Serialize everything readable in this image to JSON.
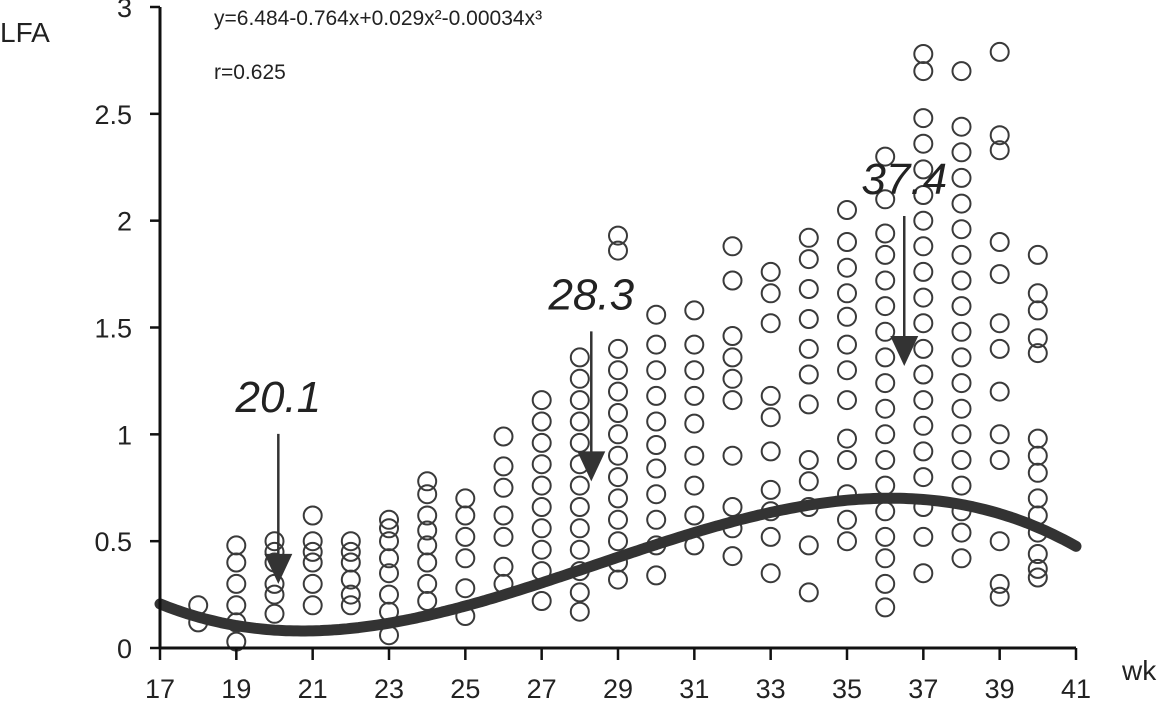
{
  "chart_data": {
    "type": "scatter",
    "xlabel": "wk",
    "ylabel": "LFA",
    "xlim": [
      17,
      41
    ],
    "ylim": [
      0,
      3
    ],
    "x_ticks": [
      "17",
      "19",
      "21",
      "23",
      "25",
      "27",
      "29",
      "31",
      "33",
      "35",
      "37",
      "39",
      "41"
    ],
    "y_ticks": [
      "0",
      "0.5",
      "1",
      "1.5",
      "2",
      "2.5",
      "3"
    ],
    "equation_text": "y=6.484-0.764x+0.029x²-0.00034x³",
    "r_text": "r=0.625",
    "grid": false,
    "fit": {
      "form": "cubic",
      "coefficients": [
        6.484,
        -0.764,
        0.029,
        -0.00034
      ]
    },
    "annotations": [
      {
        "label": "20.1",
        "x": 20.1,
        "y": 0.3
      },
      {
        "label": "28.3",
        "x": 28.3,
        "y": 0.78
      },
      {
        "label": "37.4",
        "x": 36.5,
        "y": 1.32
      }
    ],
    "points": [
      [
        18,
        0.2
      ],
      [
        18,
        0.12
      ],
      [
        19,
        0.48
      ],
      [
        19,
        0.4
      ],
      [
        19,
        0.3
      ],
      [
        19,
        0.2
      ],
      [
        19,
        0.12
      ],
      [
        19,
        0.03
      ],
      [
        20,
        0.5
      ],
      [
        20,
        0.45
      ],
      [
        20,
        0.4
      ],
      [
        20,
        0.3
      ],
      [
        20,
        0.25
      ],
      [
        20,
        0.16
      ],
      [
        21,
        0.62
      ],
      [
        21,
        0.5
      ],
      [
        21,
        0.45
      ],
      [
        21,
        0.4
      ],
      [
        21,
        0.3
      ],
      [
        21,
        0.2
      ],
      [
        22,
        0.5
      ],
      [
        22,
        0.45
      ],
      [
        22,
        0.4
      ],
      [
        22,
        0.32
      ],
      [
        22,
        0.25
      ],
      [
        22,
        0.2
      ],
      [
        23,
        0.6
      ],
      [
        23,
        0.56
      ],
      [
        23,
        0.5
      ],
      [
        23,
        0.42
      ],
      [
        23,
        0.35
      ],
      [
        23,
        0.25
      ],
      [
        23,
        0.17
      ],
      [
        23,
        0.06
      ],
      [
        24,
        0.78
      ],
      [
        24,
        0.72
      ],
      [
        24,
        0.62
      ],
      [
        24,
        0.55
      ],
      [
        24,
        0.48
      ],
      [
        24,
        0.4
      ],
      [
        24,
        0.3
      ],
      [
        24,
        0.22
      ],
      [
        25,
        0.7
      ],
      [
        25,
        0.62
      ],
      [
        25,
        0.52
      ],
      [
        25,
        0.42
      ],
      [
        25,
        0.28
      ],
      [
        25,
        0.15
      ],
      [
        26,
        0.99
      ],
      [
        26,
        0.85
      ],
      [
        26,
        0.75
      ],
      [
        26,
        0.62
      ],
      [
        26,
        0.52
      ],
      [
        26,
        0.38
      ],
      [
        26,
        0.3
      ],
      [
        27,
        1.16
      ],
      [
        27,
        1.06
      ],
      [
        27,
        0.96
      ],
      [
        27,
        0.86
      ],
      [
        27,
        0.76
      ],
      [
        27,
        0.66
      ],
      [
        27,
        0.56
      ],
      [
        27,
        0.46
      ],
      [
        27,
        0.36
      ],
      [
        27,
        0.22
      ],
      [
        28,
        1.36
      ],
      [
        28,
        1.26
      ],
      [
        28,
        1.16
      ],
      [
        28,
        1.06
      ],
      [
        28,
        0.96
      ],
      [
        28,
        0.86
      ],
      [
        28,
        0.76
      ],
      [
        28,
        0.66
      ],
      [
        28,
        0.56
      ],
      [
        28,
        0.46
      ],
      [
        28,
        0.36
      ],
      [
        28,
        0.26
      ],
      [
        28,
        0.17
      ],
      [
        29,
        1.93
      ],
      [
        29,
        1.86
      ],
      [
        29,
        1.4
      ],
      [
        29,
        1.3
      ],
      [
        29,
        1.2
      ],
      [
        29,
        1.1
      ],
      [
        29,
        1.0
      ],
      [
        29,
        0.9
      ],
      [
        29,
        0.8
      ],
      [
        29,
        0.7
      ],
      [
        29,
        0.6
      ],
      [
        29,
        0.5
      ],
      [
        29,
        0.4
      ],
      [
        29,
        0.32
      ],
      [
        30,
        1.56
      ],
      [
        30,
        1.42
      ],
      [
        30,
        1.3
      ],
      [
        30,
        1.18
      ],
      [
        30,
        1.06
      ],
      [
        30,
        0.95
      ],
      [
        30,
        0.84
      ],
      [
        30,
        0.72
      ],
      [
        30,
        0.6
      ],
      [
        30,
        0.48
      ],
      [
        30,
        0.34
      ],
      [
        31,
        1.58
      ],
      [
        31,
        1.42
      ],
      [
        31,
        1.3
      ],
      [
        31,
        1.18
      ],
      [
        31,
        1.05
      ],
      [
        31,
        0.9
      ],
      [
        31,
        0.76
      ],
      [
        31,
        0.62
      ],
      [
        31,
        0.48
      ],
      [
        32,
        1.88
      ],
      [
        32,
        1.72
      ],
      [
        32,
        1.46
      ],
      [
        32,
        1.36
      ],
      [
        32,
        1.26
      ],
      [
        32,
        1.16
      ],
      [
        32,
        0.9
      ],
      [
        32,
        0.66
      ],
      [
        32,
        0.56
      ],
      [
        32,
        0.43
      ],
      [
        33,
        1.76
      ],
      [
        33,
        1.66
      ],
      [
        33,
        1.52
      ],
      [
        33,
        1.18
      ],
      [
        33,
        1.08
      ],
      [
        33,
        0.92
      ],
      [
        33,
        0.74
      ],
      [
        33,
        0.64
      ],
      [
        33,
        0.52
      ],
      [
        33,
        0.35
      ],
      [
        34,
        1.92
      ],
      [
        34,
        1.82
      ],
      [
        34,
        1.68
      ],
      [
        34,
        1.54
      ],
      [
        34,
        1.4
      ],
      [
        34,
        1.28
      ],
      [
        34,
        1.14
      ],
      [
        34,
        0.88
      ],
      [
        34,
        0.78
      ],
      [
        34,
        0.66
      ],
      [
        34,
        0.48
      ],
      [
        34,
        0.26
      ],
      [
        35,
        2.05
      ],
      [
        35,
        1.9
      ],
      [
        35,
        1.78
      ],
      [
        35,
        1.66
      ],
      [
        35,
        1.55
      ],
      [
        35,
        1.42
      ],
      [
        35,
        1.3
      ],
      [
        35,
        1.16
      ],
      [
        35,
        0.98
      ],
      [
        35,
        0.88
      ],
      [
        35,
        0.72
      ],
      [
        35,
        0.6
      ],
      [
        35,
        0.5
      ],
      [
        36,
        2.3
      ],
      [
        36,
        2.1
      ],
      [
        36,
        1.94
      ],
      [
        36,
        1.84
      ],
      [
        36,
        1.72
      ],
      [
        36,
        1.6
      ],
      [
        36,
        1.48
      ],
      [
        36,
        1.36
      ],
      [
        36,
        1.24
      ],
      [
        36,
        1.12
      ],
      [
        36,
        1.0
      ],
      [
        36,
        0.88
      ],
      [
        36,
        0.76
      ],
      [
        36,
        0.64
      ],
      [
        36,
        0.52
      ],
      [
        36,
        0.42
      ],
      [
        36,
        0.3
      ],
      [
        36,
        0.19
      ],
      [
        37,
        2.78
      ],
      [
        37,
        2.7
      ],
      [
        37,
        2.48
      ],
      [
        37,
        2.36
      ],
      [
        37,
        2.24
      ],
      [
        37,
        2.12
      ],
      [
        37,
        2.0
      ],
      [
        37,
        1.88
      ],
      [
        37,
        1.76
      ],
      [
        37,
        1.64
      ],
      [
        37,
        1.52
      ],
      [
        37,
        1.4
      ],
      [
        37,
        1.28
      ],
      [
        37,
        1.16
      ],
      [
        37,
        1.04
      ],
      [
        37,
        0.92
      ],
      [
        37,
        0.8
      ],
      [
        37,
        0.66
      ],
      [
        37,
        0.52
      ],
      [
        37,
        0.35
      ],
      [
        38,
        2.7
      ],
      [
        38,
        2.44
      ],
      [
        38,
        2.32
      ],
      [
        38,
        2.2
      ],
      [
        38,
        2.08
      ],
      [
        38,
        1.96
      ],
      [
        38,
        1.84
      ],
      [
        38,
        1.72
      ],
      [
        38,
        1.6
      ],
      [
        38,
        1.48
      ],
      [
        38,
        1.36
      ],
      [
        38,
        1.24
      ],
      [
        38,
        1.12
      ],
      [
        38,
        1.0
      ],
      [
        38,
        0.88
      ],
      [
        38,
        0.76
      ],
      [
        38,
        0.64
      ],
      [
        38,
        0.54
      ],
      [
        38,
        0.42
      ],
      [
        39,
        2.79
      ],
      [
        39,
        2.4
      ],
      [
        39,
        2.33
      ],
      [
        39,
        1.9
      ],
      [
        39,
        1.75
      ],
      [
        39,
        1.52
      ],
      [
        39,
        1.4
      ],
      [
        39,
        1.2
      ],
      [
        39,
        1.0
      ],
      [
        39,
        0.88
      ],
      [
        39,
        0.5
      ],
      [
        39,
        0.3
      ],
      [
        39,
        0.24
      ],
      [
        40,
        1.84
      ],
      [
        40,
        1.66
      ],
      [
        40,
        1.58
      ],
      [
        40,
        1.45
      ],
      [
        40,
        1.38
      ],
      [
        40,
        0.98
      ],
      [
        40,
        0.9
      ],
      [
        40,
        0.82
      ],
      [
        40,
        0.7
      ],
      [
        40,
        0.62
      ],
      [
        40,
        0.54
      ],
      [
        40,
        0.44
      ],
      [
        40,
        0.37
      ],
      [
        40,
        0.33
      ]
    ]
  }
}
